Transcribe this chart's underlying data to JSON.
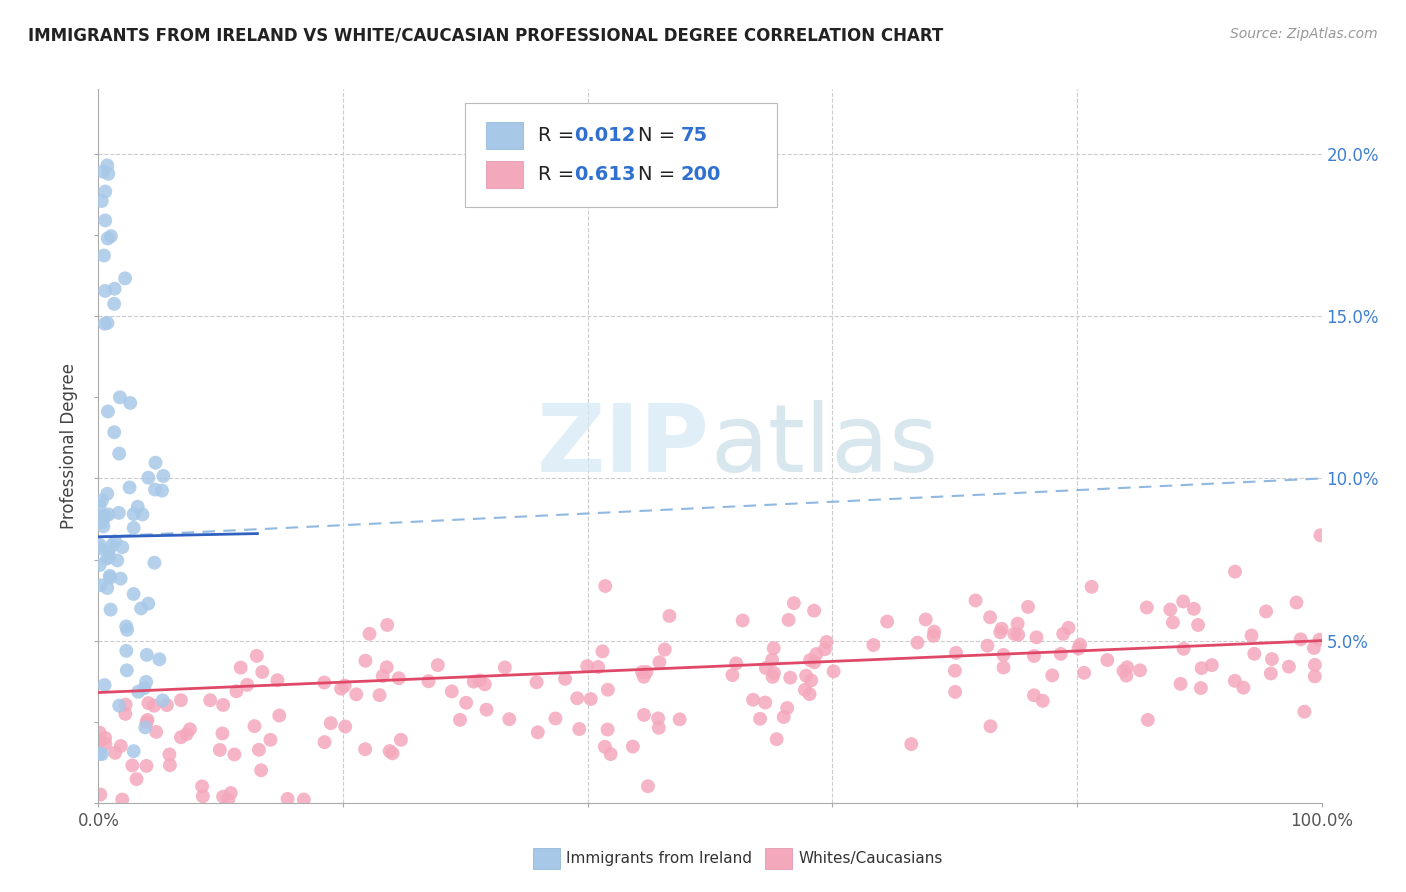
{
  "title": "IMMIGRANTS FROM IRELAND VS WHITE/CAUCASIAN PROFESSIONAL DEGREE CORRELATION CHART",
  "source": "Source: ZipAtlas.com",
  "ylabel": "Professional Degree",
  "blue_R": 0.012,
  "blue_N": 75,
  "pink_R": 0.613,
  "pink_N": 200,
  "blue_color": "#a8c8e8",
  "pink_color": "#f4a8bc",
  "blue_line_color": "#3060c0",
  "pink_line_color": "#e04868",
  "blue_dashed_color": "#90b8e0",
  "watermark_color": "#d4e8f4",
  "xlim": [
    0.0,
    1.0
  ],
  "ylim": [
    0.0,
    0.22
  ],
  "yticks_right": [
    0.05,
    0.1,
    0.15,
    0.2
  ],
  "ytick_labels_right": [
    "5.0%",
    "10.0%",
    "15.0%",
    "20.0%"
  ],
  "legend_label_blue": "Immigrants from Ireland",
  "legend_label_pink": "Whites/Caucasians",
  "background_color": "#ffffff",
  "grid_color": "#cccccc",
  "axis_color": "#888888"
}
